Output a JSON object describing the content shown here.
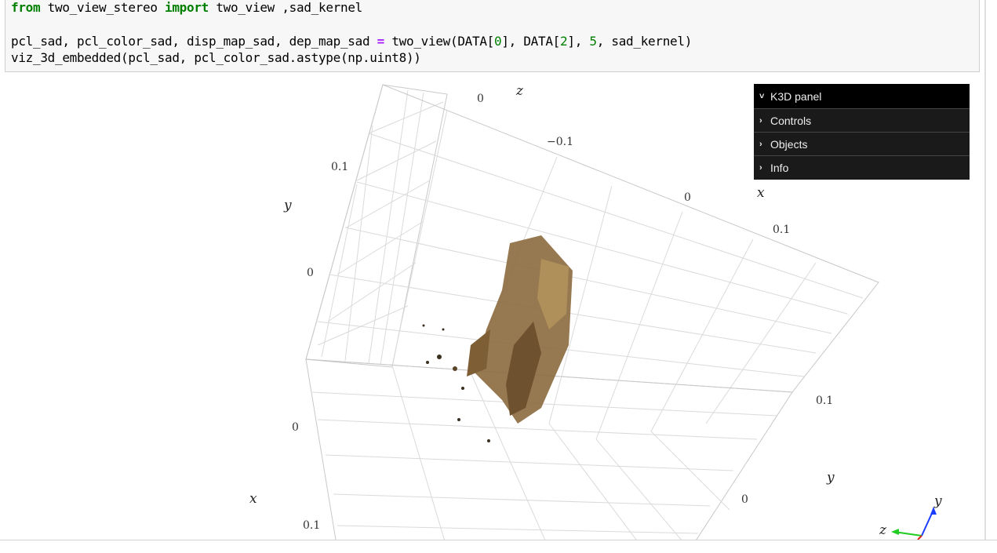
{
  "code": {
    "line1": {
      "kw1": "from",
      "mod": " two_view_stereo ",
      "kw2": "import",
      "rest": " two_view ,sad_kernel"
    },
    "line3": {
      "a": "pcl_sad, pcl_color_sad, disp_map_sad, dep_map_sad ",
      "eq": "=",
      "b": " two_view(DATA[",
      "n0": "0",
      "c": "], DATA[",
      "n2": "2",
      "d": "], ",
      "n5": "5",
      "e": ", sad_kernel)"
    },
    "line4": "viz_3d_embedded(pcl_sad, pcl_color_sad.astype(np.uint8))"
  },
  "k3d_panel": {
    "title": "K3D panel",
    "items": [
      {
        "label": "Controls"
      },
      {
        "label": "Objects"
      },
      {
        "label": "Info"
      }
    ]
  },
  "axes": {
    "z_letter": "z",
    "y_letter_left": "y",
    "x_letter_left": "x",
    "x_letter_right": "x",
    "y_letter_right": "y",
    "tick_top_0": "0",
    "tick_top_neg": "−0.1",
    "tick_left_01": "0.1",
    "tick_left_0": "0",
    "tick_mid_0": "0",
    "tick_bottom_01": "0.1",
    "tick_right_0": "0",
    "tick_right_01": "0.1",
    "tick_right2_01": "0.1",
    "tick_right_bottom_0": "0"
  },
  "gizmo": {
    "y": "y",
    "z": "z"
  },
  "colors": {
    "pointcloud": "#8b6a3e",
    "grid": "#d6d6d6"
  }
}
